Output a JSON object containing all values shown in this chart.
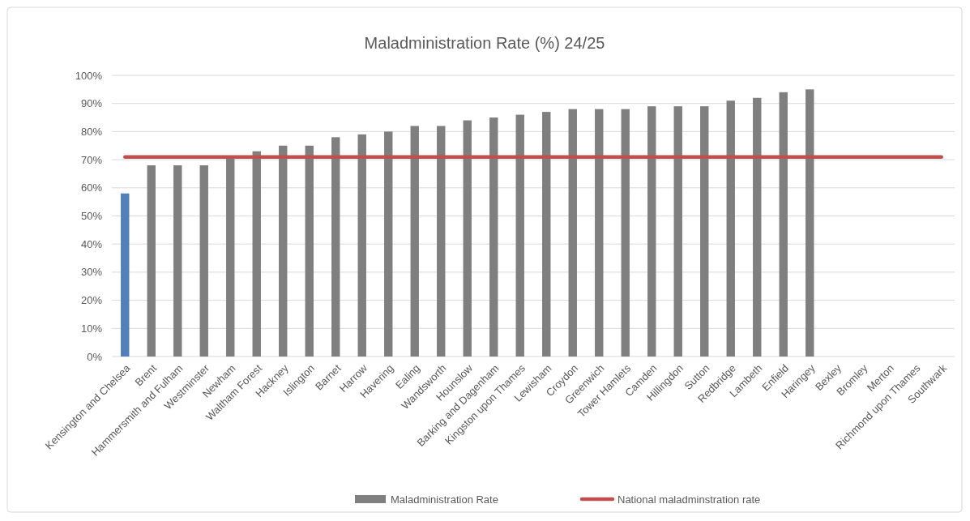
{
  "chart_data": {
    "type": "bar",
    "title": "Maladministration Rate (%) 24/25",
    "categories": [
      "Kensington and Chelsea",
      "Brent",
      "Hammersmith and Fulham",
      "Westminster",
      "Newham",
      "Waltham Forest",
      "Hackney",
      "Islington",
      "Barnet",
      "Harrow",
      "Havering",
      "Ealing",
      "Wandsworth",
      "Hounslow",
      "Barking and Dagenham",
      "Kingston upon Thames",
      "Lewisham",
      "Croydon",
      "Greenwich",
      "Tower Hamlets",
      "Camden",
      "Hillingdon",
      "Sutton",
      "Redbridge",
      "Lambeth",
      "Enfield",
      "Haringey",
      "Bexley",
      "Bromley",
      "Merton",
      "Richmond upon Thames",
      "Southwark"
    ],
    "series": [
      {
        "name": "Maladministration Rate",
        "color": "#7f7f7f",
        "colors": [
          "#4f81bd",
          "#7f7f7f",
          "#7f7f7f",
          "#7f7f7f",
          "#7f7f7f",
          "#7f7f7f",
          "#7f7f7f",
          "#7f7f7f",
          "#7f7f7f",
          "#7f7f7f",
          "#7f7f7f",
          "#7f7f7f",
          "#7f7f7f",
          "#7f7f7f",
          "#7f7f7f",
          "#7f7f7f",
          "#7f7f7f",
          "#7f7f7f",
          "#7f7f7f",
          "#7f7f7f",
          "#7f7f7f",
          "#7f7f7f",
          "#7f7f7f",
          "#7f7f7f",
          "#7f7f7f",
          "#7f7f7f",
          "#7f7f7f",
          null,
          null,
          null,
          null,
          null
        ],
        "values": [
          58,
          68,
          68,
          68,
          71,
          73,
          75,
          75,
          78,
          79,
          80,
          82,
          82,
          84,
          85,
          86,
          87,
          88,
          88,
          88,
          89,
          89,
          89,
          91,
          92,
          94,
          95,
          null,
          null,
          null,
          null,
          null
        ]
      },
      {
        "name": "National maladminstration rate",
        "type": "line",
        "color": "#c0504d",
        "values": [
          71,
          71,
          71,
          71,
          71,
          71,
          71,
          71,
          71,
          71,
          71,
          71,
          71,
          71,
          71,
          71,
          71,
          71,
          71,
          71,
          71,
          71,
          71,
          71,
          71,
          71,
          71,
          71,
          71,
          71,
          71,
          71
        ]
      }
    ],
    "ylim": [
      0,
      100
    ],
    "yticks": [
      {
        "value": 0,
        "label": "0%"
      },
      {
        "value": 10,
        "label": "10%"
      },
      {
        "value": 20,
        "label": "20%"
      },
      {
        "value": 30,
        "label": "30%"
      },
      {
        "value": 40,
        "label": "40%"
      },
      {
        "value": 50,
        "label": "50%"
      },
      {
        "value": 60,
        "label": "60%"
      },
      {
        "value": 70,
        "label": "70%"
      },
      {
        "value": 80,
        "label": "80%"
      },
      {
        "value": 90,
        "label": "90%"
      },
      {
        "value": 100,
        "label": "100%"
      }
    ],
    "grid": "y",
    "legend": "bottom"
  }
}
